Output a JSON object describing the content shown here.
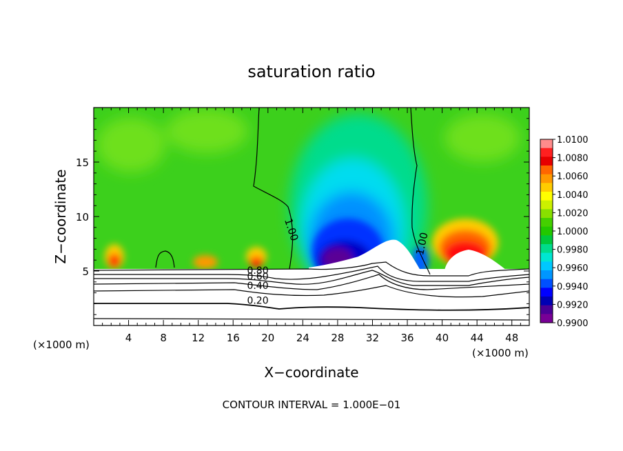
{
  "chart_data": {
    "type": "heatmap",
    "title": "saturation ratio",
    "xlabel": "X−coordinate",
    "ylabel": "Z−coordinate",
    "x_unit_left": "(×1000 m)",
    "x_unit_right": "(×1000 m)",
    "xlim": [
      0,
      50
    ],
    "ylim": [
      0,
      20
    ],
    "x_ticks": [
      4,
      8,
      12,
      16,
      20,
      24,
      28,
      32,
      36,
      40,
      44,
      48
    ],
    "y_ticks": [
      5,
      10,
      15
    ],
    "footer": "CONTOUR INTERVAL = 1.000E−01",
    "colorbar": {
      "labels": [
        "1.0100",
        "1.0080",
        "1.0060",
        "1.0040",
        "1.0020",
        "1.0000",
        "0.9980",
        "0.9960",
        "0.9940",
        "0.9920",
        "0.9900"
      ],
      "colors": [
        "#ff8c8c",
        "#ff2020",
        "#e60000",
        "#ff6600",
        "#ff9900",
        "#ffcc00",
        "#ffff00",
        "#ccf000",
        "#88e000",
        "#44d000",
        "#22c800",
        "#00c83c",
        "#00dc8c",
        "#00e6d2",
        "#00c8ff",
        "#0096ff",
        "#0050ff",
        "#0000ff",
        "#0000b4",
        "#4b0096",
        "#780096"
      ]
    },
    "contour_labels": [
      {
        "text": "1.00",
        "x": 21.9,
        "z": 9.7,
        "rotate": 72
      },
      {
        "text": "1.00",
        "x": 37.8,
        "z": 6.4,
        "rotate": -78
      },
      {
        "text": "0.80",
        "x": 17.6,
        "z": 4.75
      },
      {
        "text": "0.60",
        "x": 17.6,
        "z": 4.2
      },
      {
        "text": "0.40",
        "x": 17.6,
        "z": 3.35
      },
      {
        "text": "0.20",
        "x": 17.6,
        "z": 2.0
      }
    ]
  }
}
